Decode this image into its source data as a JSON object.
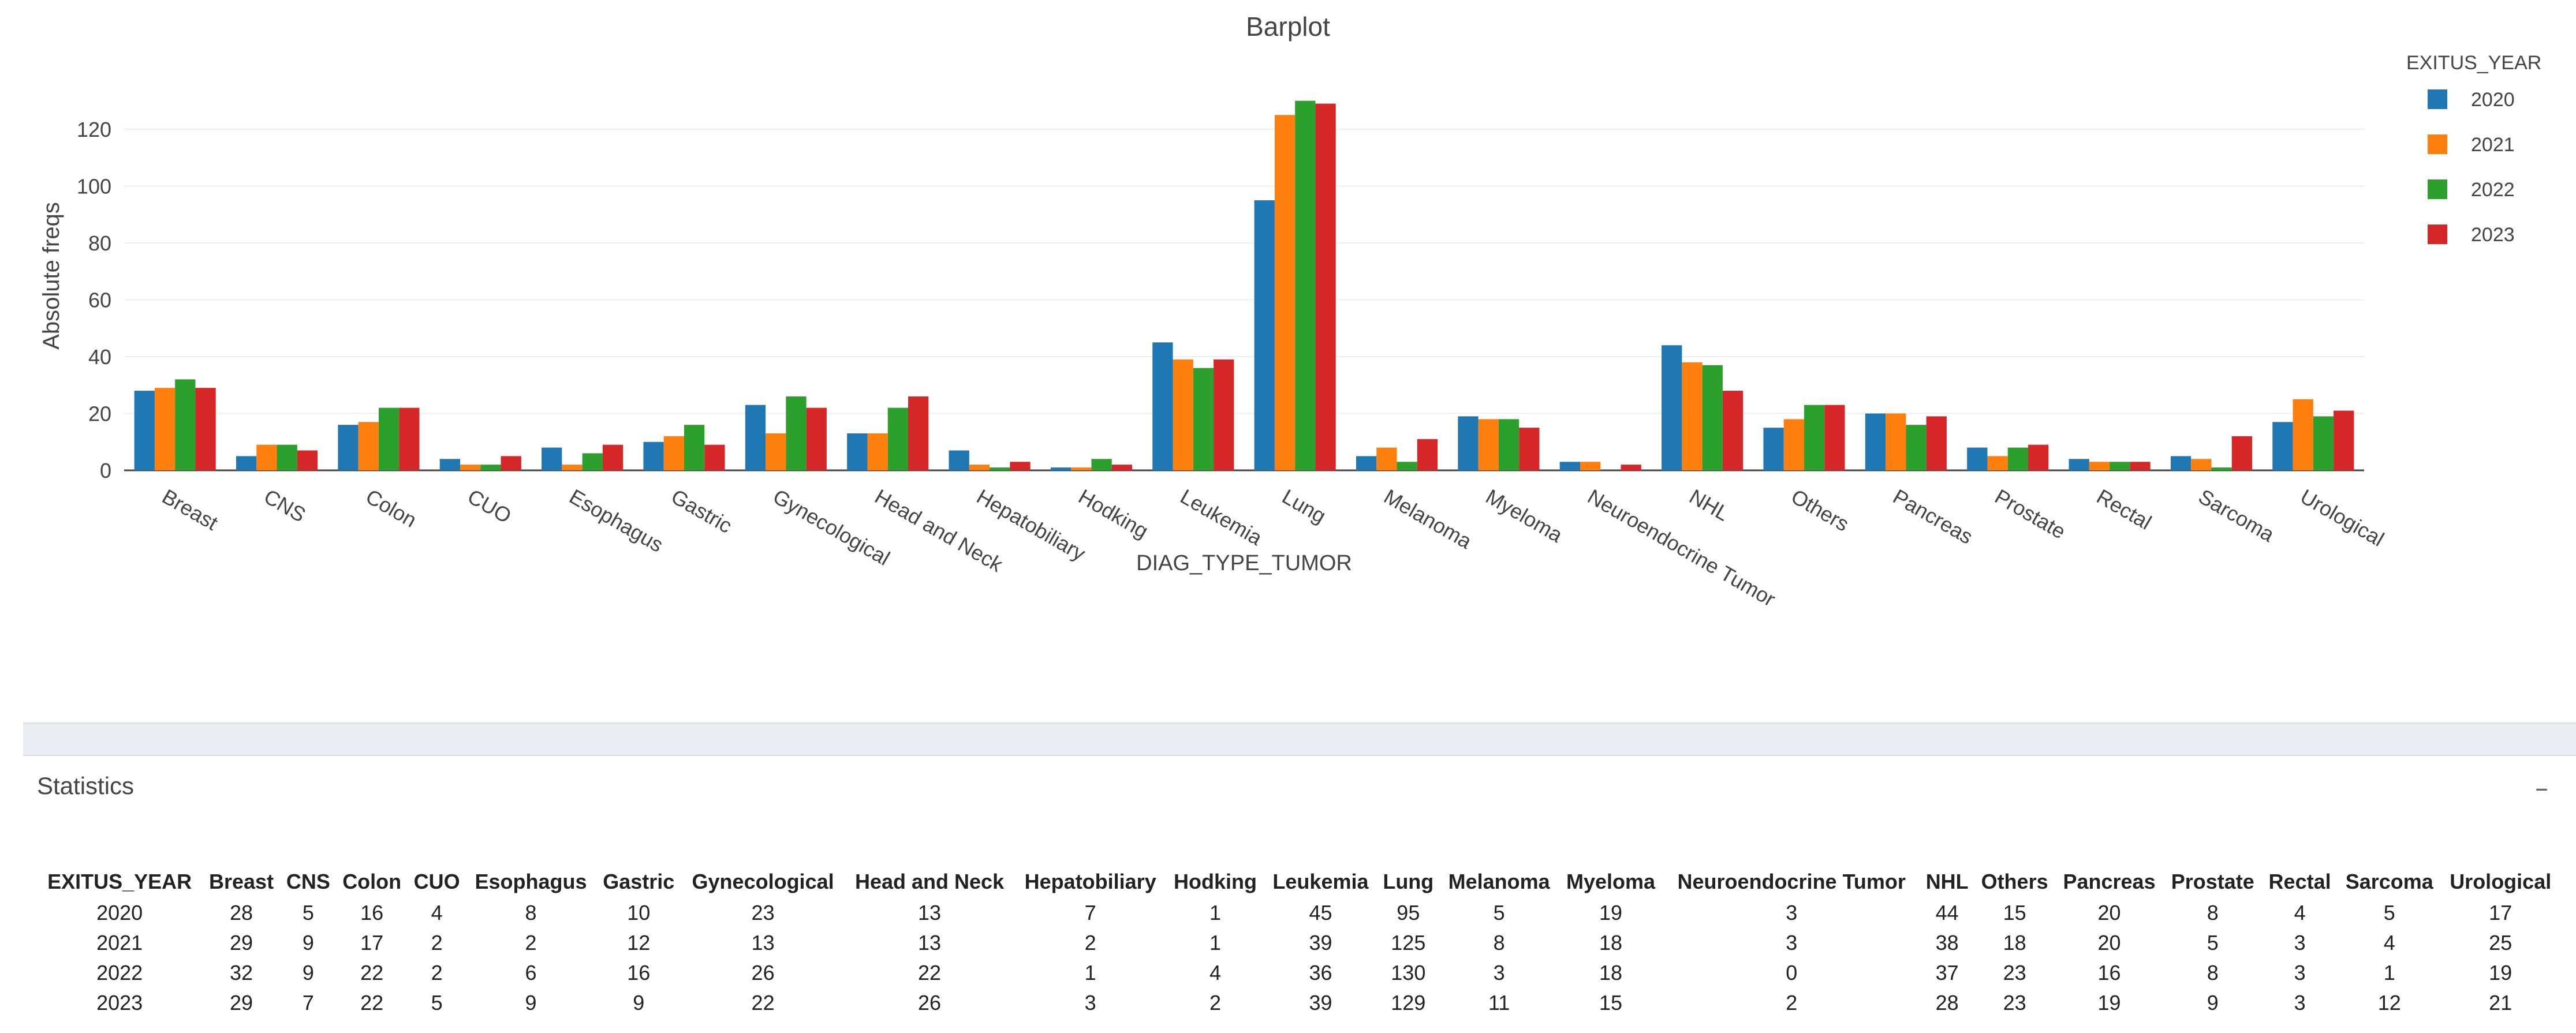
{
  "chart_data": {
    "type": "bar",
    "title": "Barplot",
    "xlabel": "DIAG_TYPE_TUMOR",
    "ylabel": "Absolute freqs",
    "ylim": [
      0,
      135
    ],
    "yticks": [
      0,
      20,
      40,
      60,
      80,
      100,
      120
    ],
    "grid": true,
    "legend_title": "EXITUS_YEAR",
    "legend_position": "top-right",
    "categories": [
      "Breast",
      "CNS",
      "Colon",
      "CUO",
      "Esophagus",
      "Gastric",
      "Gynecological",
      "Head and Neck",
      "Hepatobiliary",
      "Hodking",
      "Leukemia",
      "Lung",
      "Melanoma",
      "Myeloma",
      "Neuroendocrine Tumor",
      "NHL",
      "Others",
      "Pancreas",
      "Prostate",
      "Rectal",
      "Sarcoma",
      "Urological"
    ],
    "series": [
      {
        "name": "2020",
        "color": "#1f77b4",
        "values": [
          28,
          5,
          16,
          4,
          8,
          10,
          23,
          13,
          7,
          1,
          45,
          95,
          5,
          19,
          3,
          44,
          15,
          20,
          8,
          4,
          5,
          17
        ]
      },
      {
        "name": "2021",
        "color": "#ff7f0e",
        "values": [
          29,
          9,
          17,
          2,
          2,
          12,
          13,
          13,
          2,
          1,
          39,
          125,
          8,
          18,
          3,
          38,
          18,
          20,
          5,
          3,
          4,
          25
        ]
      },
      {
        "name": "2022",
        "color": "#2ca02c",
        "values": [
          32,
          9,
          22,
          2,
          6,
          16,
          26,
          22,
          1,
          4,
          36,
          130,
          3,
          18,
          0,
          37,
          23,
          16,
          8,
          3,
          1,
          19
        ]
      },
      {
        "name": "2023",
        "color": "#d62728",
        "values": [
          29,
          7,
          22,
          5,
          9,
          9,
          22,
          26,
          3,
          2,
          39,
          129,
          11,
          15,
          2,
          28,
          23,
          19,
          9,
          3,
          12,
          21
        ]
      }
    ]
  },
  "stats": {
    "title": "Statistics",
    "collapse_symbol": "–",
    "table": {
      "headers": [
        "EXITUS_YEAR",
        "Breast",
        "CNS",
        "Colon",
        "CUO",
        "Esophagus",
        "Gastric",
        "Gynecological",
        "Head and Neck",
        "Hepatobiliary",
        "Hodking",
        "Leukemia",
        "Lung",
        "Melanoma",
        "Myeloma",
        "Neuroendocrine Tumor",
        "NHL",
        "Others",
        "Pancreas",
        "Prostate",
        "Rectal",
        "Sarcoma",
        "Urological"
      ],
      "rows": [
        [
          "2020",
          "28",
          "5",
          "16",
          "4",
          "8",
          "10",
          "23",
          "13",
          "7",
          "1",
          "45",
          "95",
          "5",
          "19",
          "3",
          "44",
          "15",
          "20",
          "8",
          "4",
          "5",
          "17"
        ],
        [
          "2021",
          "29",
          "9",
          "17",
          "2",
          "2",
          "12",
          "13",
          "13",
          "2",
          "1",
          "39",
          "125",
          "8",
          "18",
          "3",
          "38",
          "18",
          "20",
          "5",
          "3",
          "4",
          "25"
        ],
        [
          "2022",
          "32",
          "9",
          "22",
          "2",
          "6",
          "16",
          "26",
          "22",
          "1",
          "4",
          "36",
          "130",
          "3",
          "18",
          "0",
          "37",
          "23",
          "16",
          "8",
          "3",
          "1",
          "19"
        ],
        [
          "2023",
          "29",
          "7",
          "22",
          "5",
          "9",
          "9",
          "22",
          "26",
          "3",
          "2",
          "39",
          "129",
          "11",
          "15",
          "2",
          "28",
          "23",
          "19",
          "9",
          "3",
          "12",
          "21"
        ]
      ]
    }
  }
}
